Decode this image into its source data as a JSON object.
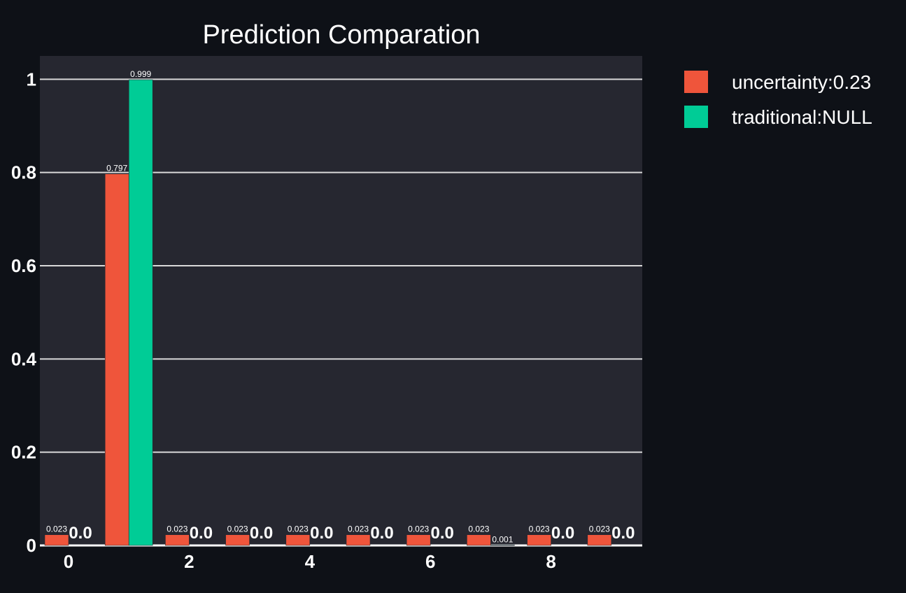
{
  "chart_data": {
    "type": "bar",
    "title": "Prediction Comparation",
    "xlabel": "",
    "ylabel": "",
    "x": [
      0,
      1,
      2,
      3,
      4,
      5,
      6,
      7,
      8,
      9
    ],
    "x_ticks": [
      "0",
      "2",
      "4",
      "6",
      "8"
    ],
    "x_tick_values": [
      0,
      2,
      4,
      6,
      8
    ],
    "y_ticks": [
      "0",
      "0.2",
      "0.4",
      "0.6",
      "0.8",
      "1"
    ],
    "y_tick_values": [
      0,
      0.2,
      0.4,
      0.6,
      0.8,
      1
    ],
    "ylim": [
      0,
      1.05
    ],
    "grid": true,
    "legend_position": "top-right",
    "series": [
      {
        "name": "uncertainty:0.23",
        "color": "#ef553b",
        "values": [
          0.023,
          0.797,
          0.023,
          0.023,
          0.023,
          0.023,
          0.023,
          0.023,
          0.023,
          0.023
        ],
        "labels": [
          "0.023",
          "0.797",
          "0.023",
          "0.023",
          "0.023",
          "0.023",
          "0.023",
          "0.023",
          "0.023",
          "0.023"
        ]
      },
      {
        "name": "traditional:NULL",
        "color": "#00cc96",
        "values": [
          0.0,
          0.999,
          0.0,
          0.0,
          0.0,
          0.0,
          0.0,
          0.001,
          0.0,
          0.0
        ],
        "labels": [
          "0.0",
          "0.999",
          "0.0",
          "0.0",
          "0.0",
          "0.0",
          "0.0",
          "0.001",
          "0.0",
          "0.0"
        ]
      }
    ]
  }
}
